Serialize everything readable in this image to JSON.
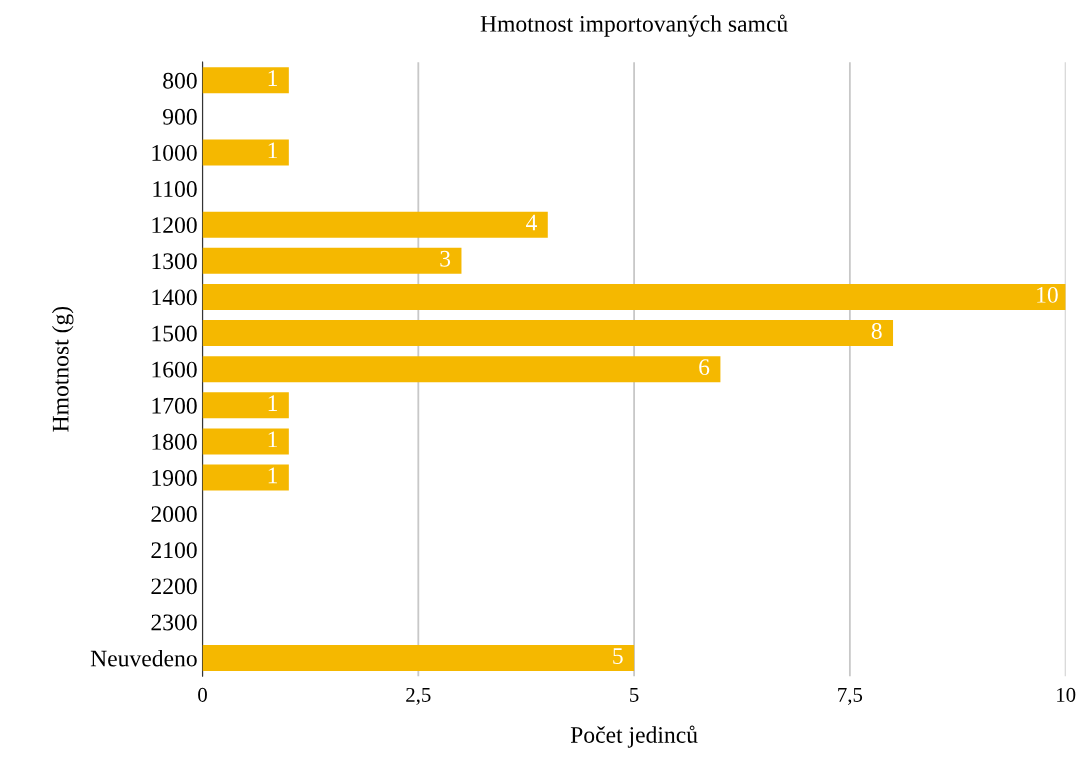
{
  "chart_data": {
    "type": "bar",
    "orientation": "horizontal",
    "title": "Hmotnost importovaných samců",
    "xlabel": "Počet jedinců",
    "ylabel": "Hmotnost (g)",
    "categories": [
      "800",
      "900",
      "1000",
      "1100",
      "1200",
      "1300",
      "1400",
      "1500",
      "1600",
      "1700",
      "1800",
      "1900",
      "2000",
      "2100",
      "2200",
      "2300",
      "Neuvedeno"
    ],
    "values": [
      1,
      null,
      1,
      null,
      4,
      3,
      10,
      8,
      6,
      1,
      1,
      1,
      null,
      null,
      null,
      null,
      5
    ],
    "value_labels": [
      "1",
      null,
      "1",
      null,
      "4",
      "3",
      "10",
      "8",
      "6",
      "1",
      "1",
      "1",
      null,
      null,
      null,
      null,
      "5"
    ],
    "color": "#f5b800",
    "xlim": [
      0,
      10
    ],
    "xticks": [
      0,
      {
        "value": 2.5,
        "label": "2,5"
      },
      5,
      {
        "value": 7.5,
        "label": "7,5"
      },
      10
    ],
    "grid": "x"
  }
}
